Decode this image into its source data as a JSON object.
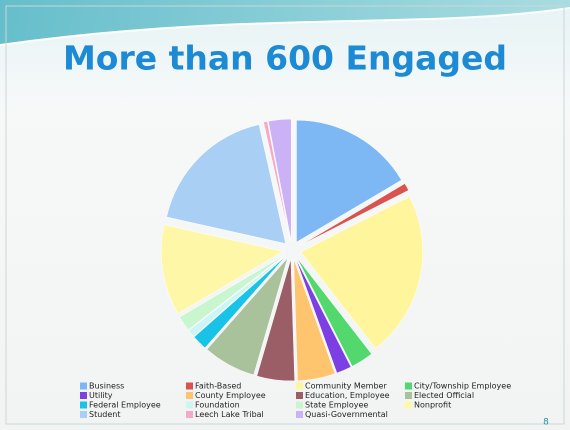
{
  "chart_data": {
    "type": "pie",
    "title": "More than 600 Engaged",
    "categories": [
      "Business",
      "Faith-Based",
      "Community Member",
      "City/Township Employee",
      "Utility",
      "County Employee",
      "Education, Employee",
      "Elected Official",
      "Federal Employee",
      "Foundation",
      "State Employee",
      "Nonprofit",
      "Student",
      "Leech Lake Tribal",
      "Quasi-Governmental"
    ],
    "values": [
      16.5,
      1,
      22,
      3,
      2,
      5,
      5,
      7,
      2,
      1,
      2,
      12,
      18,
      0.5,
      3
    ],
    "colors": [
      "#7db8f5",
      "#d9534f",
      "#fff59d",
      "#52d86c",
      "#7b3fe4",
      "#ffc46e",
      "#9b5e66",
      "#a9c29b",
      "#19c3e8",
      "#cdf5f5",
      "#c9f5cf",
      "#fff7a8",
      "#a9cff5",
      "#f5a9c9",
      "#cbb1f5"
    ]
  },
  "slide_number": "8"
}
